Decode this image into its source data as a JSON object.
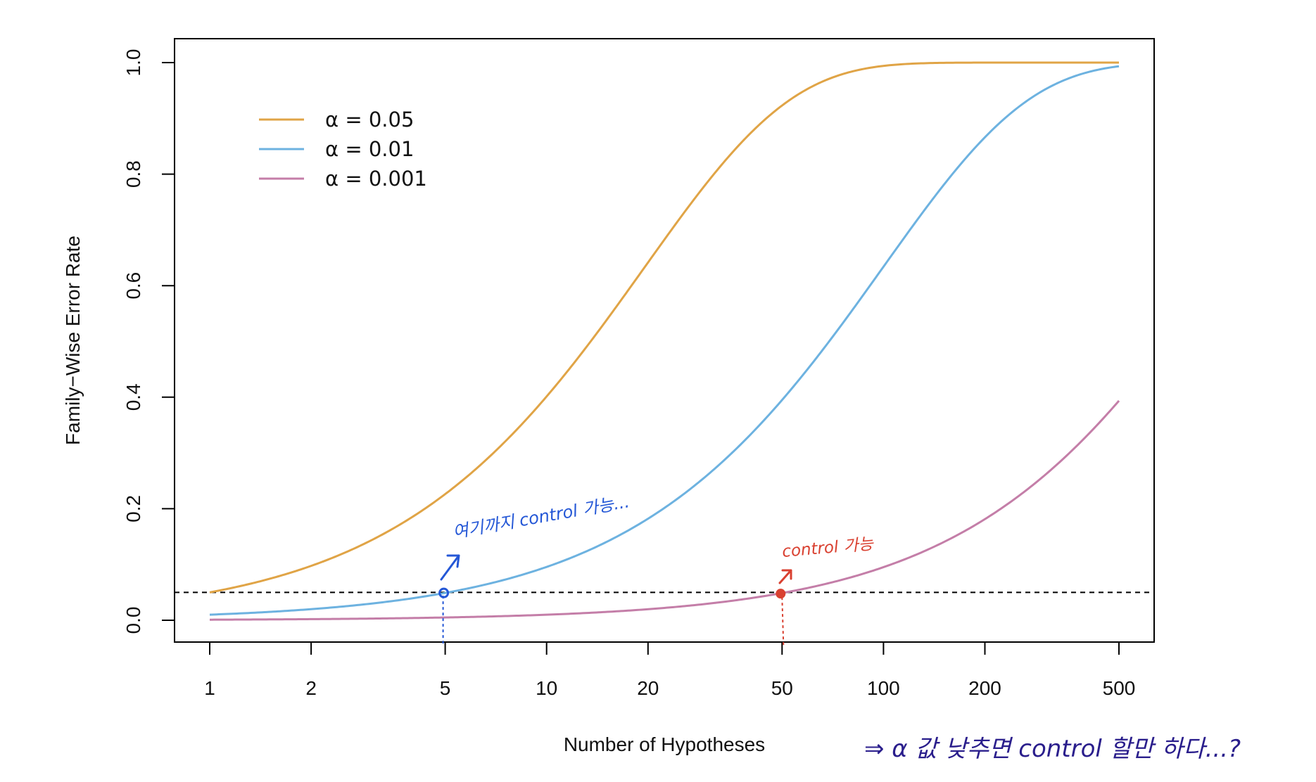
{
  "chart_data": {
    "type": "line",
    "xscale": "log",
    "xlabel": "Number of Hypotheses",
    "ylabel": "Family−Wise Error Rate",
    "xlim": [
      1,
      500
    ],
    "ylim": [
      0,
      1
    ],
    "x_ticks": [
      "1",
      "2",
      "5",
      "10",
      "20",
      "50",
      "100",
      "200",
      "500"
    ],
    "y_ticks": [
      "0.0",
      "0.2",
      "0.4",
      "0.6",
      "0.8",
      "1.0"
    ],
    "grid": false,
    "legend_position": "top-left",
    "reference_line": {
      "y": 0.05,
      "style": "dashed",
      "color": "#000000"
    },
    "series": [
      {
        "name": "α = 0.05",
        "alpha": 0.05,
        "color": "#E0A446"
      },
      {
        "name": "α = 0.01",
        "alpha": 0.01,
        "color": "#6DB2E0"
      },
      {
        "name": "α = 0.001",
        "alpha": 0.001,
        "color": "#C47EA8"
      }
    ],
    "annotations": [
      {
        "text": "여기까지 control 가능...",
        "color": "#2457D6",
        "point": {
          "x": 5,
          "y": 0.049
        }
      },
      {
        "text": "control 가능",
        "color": "#D94030",
        "point": {
          "x": 50,
          "y": 0.049
        }
      },
      {
        "text": "⇒ α 값 낮추면 control 할만 하다...?",
        "color": "#2A1E8C"
      }
    ]
  }
}
